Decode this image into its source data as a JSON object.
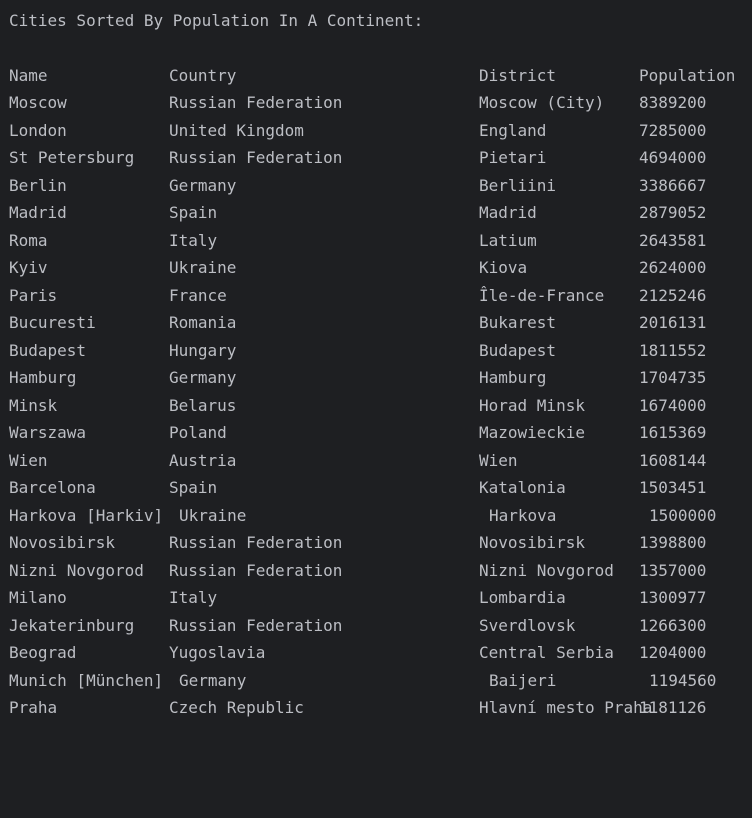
{
  "console": {
    "title": "Cities Sorted By Population In A Continent:",
    "columns": {
      "name": "Name",
      "country": "Country",
      "district": "District",
      "population": "Population"
    },
    "rows": [
      {
        "name": "Moscow",
        "country": "Russian Federation",
        "district": "Moscow (City)",
        "population": "8389200"
      },
      {
        "name": "London",
        "country": "United Kingdom",
        "district": "England",
        "population": "7285000"
      },
      {
        "name": "St Petersburg",
        "country": "Russian Federation",
        "district": "Pietari",
        "population": "4694000"
      },
      {
        "name": "Berlin",
        "country": "Germany",
        "district": "Berliini",
        "population": "3386667"
      },
      {
        "name": "Madrid",
        "country": "Spain",
        "district": "Madrid",
        "population": "2879052"
      },
      {
        "name": "Roma",
        "country": "Italy",
        "district": "Latium",
        "population": "2643581"
      },
      {
        "name": "Kyiv",
        "country": "Ukraine",
        "district": "Kiova",
        "population": "2624000"
      },
      {
        "name": "Paris",
        "country": "France",
        "district": "Île-de-France",
        "population": "2125246"
      },
      {
        "name": "Bucuresti",
        "country": "Romania",
        "district": "Bukarest",
        "population": "2016131"
      },
      {
        "name": "Budapest",
        "country": "Hungary",
        "district": "Budapest",
        "population": "1811552"
      },
      {
        "name": "Hamburg",
        "country": "Germany",
        "district": "Hamburg",
        "population": "1704735"
      },
      {
        "name": "Minsk",
        "country": "Belarus",
        "district": "Horad Minsk",
        "population": "1674000"
      },
      {
        "name": "Warszawa",
        "country": "Poland",
        "district": "Mazowieckie",
        "population": "1615369"
      },
      {
        "name": "Wien",
        "country": "Austria",
        "district": "Wien",
        "population": "1608144"
      },
      {
        "name": "Barcelona",
        "country": "Spain",
        "district": "Katalonia",
        "population": "1503451"
      },
      {
        "name": "Harkova [Harkiv]",
        "country": "Ukraine",
        "district": "Harkova",
        "population": "1500000"
      },
      {
        "name": "Novosibirsk",
        "country": "Russian Federation",
        "district": "Novosibirsk",
        "population": "1398800"
      },
      {
        "name": "Nizni Novgorod",
        "country": "Russian Federation",
        "district": "Nizni Novgorod",
        "population": "1357000"
      },
      {
        "name": "Milano",
        "country": "Italy",
        "district": "Lombardia",
        "population": "1300977"
      },
      {
        "name": "Jekaterinburg",
        "country": "Russian Federation",
        "district": "Sverdlovsk",
        "population": "1266300"
      },
      {
        "name": "Beograd",
        "country": "Yugoslavia",
        "district": "Central Serbia",
        "population": "1204000"
      },
      {
        "name": "Munich [München]",
        "country": "Germany",
        "district": "Baijeri",
        "population": "1194560"
      },
      {
        "name": "Praha",
        "country": "Czech Republic",
        "district": "Hlavní mesto Praha",
        "population": "1181126"
      }
    ]
  }
}
